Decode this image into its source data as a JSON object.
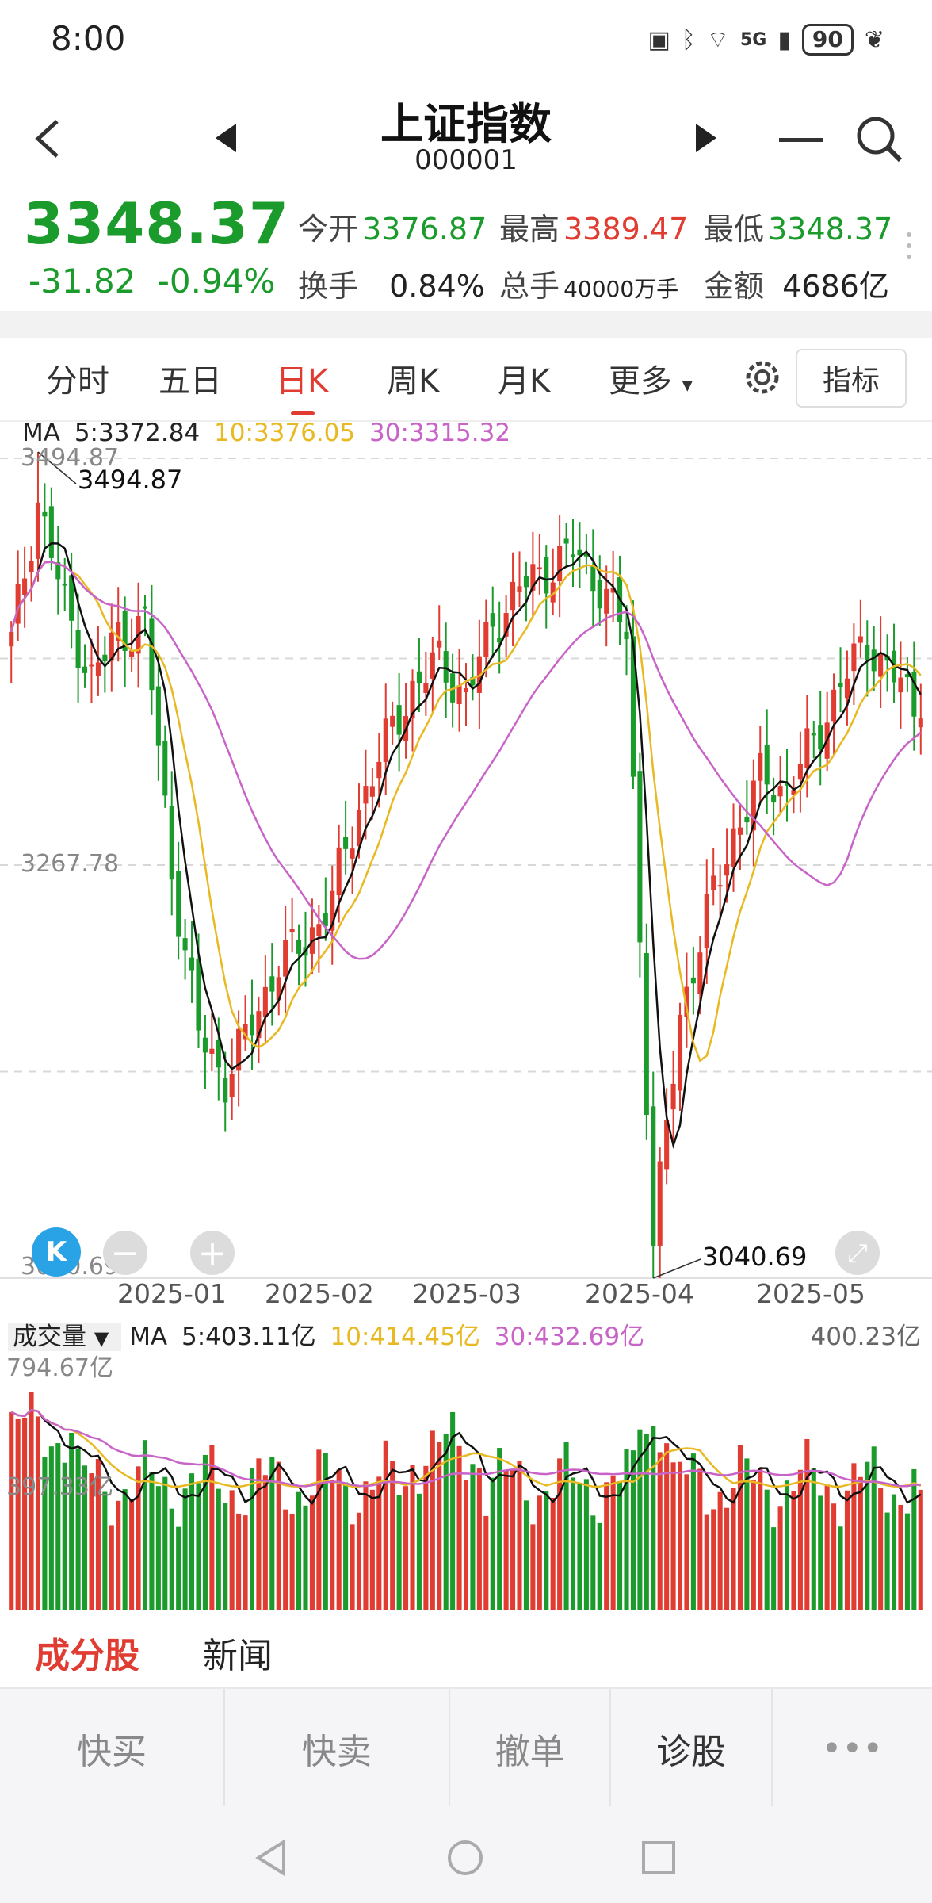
{
  "status": {
    "time": "8:00",
    "network": "5G",
    "battery": "90"
  },
  "header": {
    "title": "上证指数",
    "code": "000001"
  },
  "quote": {
    "price": "3348.37",
    "change": "-31.82",
    "change_pct": "-0.94%",
    "open_label": "今开",
    "open": "3376.87",
    "high_label": "最高",
    "high": "3389.47",
    "low_label": "最低",
    "low": "3348.37",
    "turnover_label": "换手",
    "turnover": "0.84%",
    "volume_label": "总手",
    "volume": "40000万手",
    "amount_label": "金额",
    "amount": "4686亿"
  },
  "tabs": [
    {
      "label": "分时"
    },
    {
      "label": "五日"
    },
    {
      "label": "日K"
    },
    {
      "label": "周K"
    },
    {
      "label": "月K"
    },
    {
      "label": "更多"
    }
  ],
  "active_tab": "日K",
  "indicator_button": "指标",
  "ma_legend": {
    "prefix": "MA",
    "ma5": "5:3372.84",
    "ma10": "10:3376.05",
    "ma30": "30:3315.32"
  },
  "price_axis": {
    "top": "3494.87",
    "mid": "3267.78",
    "bottom": "3040.69"
  },
  "annotations": {
    "high": "3494.87",
    "low": "3040.69"
  },
  "dates": [
    "2025-01",
    "2025-02",
    "2025-03",
    "2025-04",
    "2025-05"
  ],
  "volume_legend": {
    "dropdown": "成交量",
    "prefix": "MA",
    "ma5": "5:403.11亿",
    "ma10": "10:414.45亿",
    "ma30": "30:432.69亿",
    "current": "400.23亿",
    "axis_top": "794.67亿",
    "axis_mid": "397.33亿"
  },
  "lower_tabs": [
    {
      "label": "成分股"
    },
    {
      "label": "新闻"
    }
  ],
  "actions": [
    {
      "label": "快买"
    },
    {
      "label": "快卖"
    },
    {
      "label": "撤单"
    },
    {
      "label": "诊股"
    },
    {
      "label": "•••"
    }
  ],
  "colors": {
    "up": "#e03c32",
    "down": "#1a9b2b",
    "ma5": "#111111",
    "ma10": "#e8b923",
    "ma30": "#c864c8"
  },
  "chart_data": {
    "type": "candlestick",
    "ylim": [
      3040.69,
      3494.87
    ],
    "x_ticks": [
      "2025-01",
      "2025-02",
      "2025-03",
      "2025-04",
      "2025-05"
    ],
    "ma_series": [
      {
        "name": "MA5",
        "last": 3372.84
      },
      {
        "name": "MA10",
        "last": 3376.05
      },
      {
        "name": "MA30",
        "last": 3315.32
      }
    ],
    "close_anchors": [
      [
        0,
        3390
      ],
      [
        4,
        3468
      ],
      [
        8,
        3410
      ],
      [
        12,
        3370
      ],
      [
        16,
        3395
      ],
      [
        20,
        3400
      ],
      [
        24,
        3265
      ],
      [
        28,
        3175
      ],
      [
        32,
        3150
      ],
      [
        36,
        3180
      ],
      [
        40,
        3215
      ],
      [
        44,
        3225
      ],
      [
        48,
        3250
      ],
      [
        52,
        3300
      ],
      [
        56,
        3335
      ],
      [
        60,
        3365
      ],
      [
        64,
        3380
      ],
      [
        68,
        3360
      ],
      [
        72,
        3400
      ],
      [
        76,
        3420
      ],
      [
        80,
        3430
      ],
      [
        84,
        3440
      ],
      [
        88,
        3422
      ],
      [
        92,
        3395
      ],
      [
        96,
        3060
      ],
      [
        100,
        3185
      ],
      [
        104,
        3240
      ],
      [
        108,
        3285
      ],
      [
        112,
        3315
      ],
      [
        116,
        3310
      ],
      [
        120,
        3335
      ],
      [
        124,
        3368
      ],
      [
        128,
        3390
      ],
      [
        132,
        3372
      ],
      [
        136,
        3348
      ]
    ],
    "volume_yi_range": [
      0,
      794.67
    ],
    "last_volume_yi": 400.23
  }
}
